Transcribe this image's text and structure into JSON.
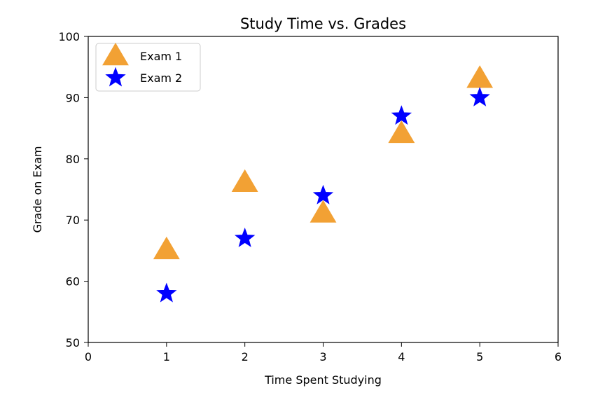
{
  "chart_data": {
    "type": "scatter",
    "title": "Study Time vs. Grades",
    "xlabel": "Time Spent Studying",
    "ylabel": "Grade on Exam",
    "xlim": [
      0,
      6
    ],
    "ylim": [
      50,
      100
    ],
    "xticks": [
      "0",
      "1",
      "2",
      "3",
      "4",
      "5",
      "6"
    ],
    "yticks": [
      "50",
      "60",
      "70",
      "80",
      "90",
      "100"
    ],
    "grid": false,
    "legend_position": "top-left",
    "series": [
      {
        "name": "Exam 1",
        "marker": "triangle",
        "color": "#f2a134",
        "x": [
          1,
          2,
          3,
          4,
          5
        ],
        "y": [
          65,
          76,
          71,
          84,
          93
        ]
      },
      {
        "name": "Exam 2",
        "marker": "star",
        "color": "#0000ff",
        "x": [
          1,
          2,
          3,
          4,
          5
        ],
        "y": [
          58,
          67,
          74,
          87,
          90
        ]
      }
    ]
  }
}
